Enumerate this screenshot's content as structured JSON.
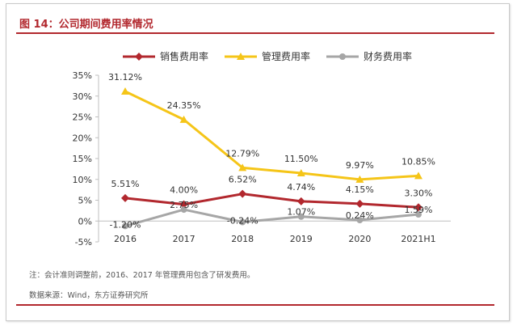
{
  "title": "图 14：公司期间费用率情况",
  "note": "注：会计准则调整前，2016、2017 年管理费用包含了研发费用。",
  "source": "数据来源：Wind，东方证券研究所",
  "chart_data": {
    "type": "line",
    "categories": [
      "2016",
      "2017",
      "2018",
      "2019",
      "2020",
      "2021H1"
    ],
    "ylim": [
      -5,
      35
    ],
    "yticks": [
      -5,
      0,
      5,
      10,
      15,
      20,
      25,
      30,
      35
    ],
    "ytick_labels": [
      "-5%",
      "0%",
      "5%",
      "10%",
      "15%",
      "20%",
      "25%",
      "30%",
      "35%"
    ],
    "legend_position": "top",
    "grid": false,
    "series": [
      {
        "name": "销售费用率",
        "color": "#b2282e",
        "marker": "diamond",
        "values": [
          5.51,
          4.0,
          6.52,
          4.74,
          4.15,
          3.3
        ],
        "labels": [
          "5.51%",
          "4.00%",
          "6.52%",
          "4.74%",
          "4.15%",
          "3.30%"
        ]
      },
      {
        "name": "管理费用率",
        "color": "#f5c518",
        "marker": "triangle",
        "values": [
          31.12,
          24.35,
          12.79,
          11.5,
          9.97,
          10.85
        ],
        "labels": [
          "31.12%",
          "24.35%",
          "12.79%",
          "11.50%",
          "9.97%",
          "10.85%"
        ]
      },
      {
        "name": "财务费用率",
        "color": "#a6a6a6",
        "marker": "circle",
        "values": [
          -1.2,
          2.75,
          -0.24,
          1.07,
          0.24,
          1.59
        ],
        "labels": [
          "-1.20%",
          "2.75%",
          "-0.24%",
          "1.07%",
          "0.24%",
          "1.59%"
        ]
      }
    ]
  }
}
